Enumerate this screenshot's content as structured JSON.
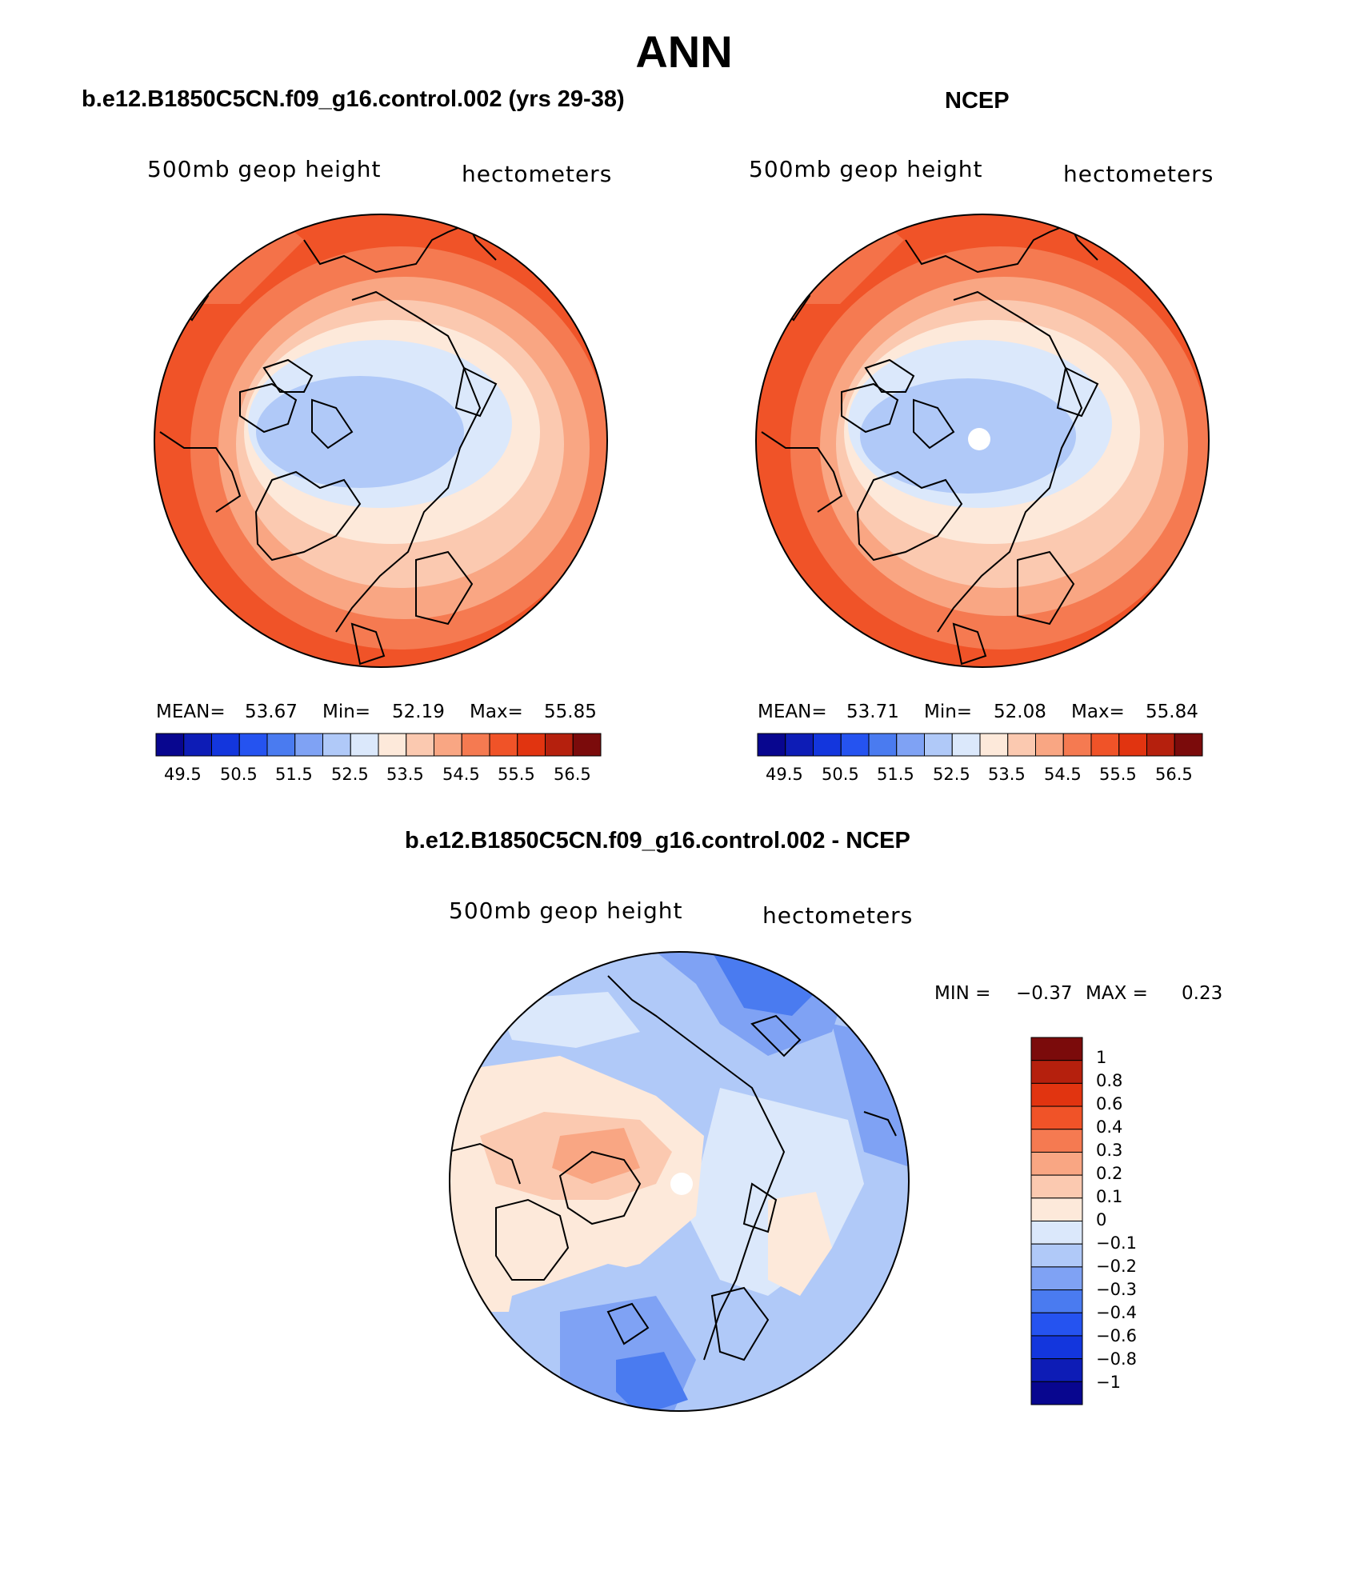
{
  "figure": {
    "title": "ANN"
  },
  "colors": {
    "blue_red_16": [
      "#08068f",
      "#0d1cb6",
      "#1336dd",
      "#2553f0",
      "#4a7bf0",
      "#7fa2f4",
      "#b0c9f8",
      "#dbe8fb",
      "#fde9da",
      "#fbc9b0",
      "#f9a683",
      "#f57a51",
      "#f05328",
      "#e13410",
      "#b5200d",
      "#7b0b0b"
    ]
  },
  "panels": [
    {
      "id": "model",
      "title": "b.e12.B1850C5CN.f09_g16.control.002 (yrs 29-38)",
      "variable": "500mb geop height",
      "units": "hectometers",
      "stats": {
        "mean_label": "MEAN=",
        "mean": "53.67",
        "min_label": "Min=",
        "min": "52.19",
        "max_label": "Max=",
        "max": "55.85"
      },
      "colorbar_ticks": [
        "49.5",
        "50.5",
        "51.5",
        "52.5",
        "53.5",
        "54.5",
        "55.5",
        "56.5"
      ]
    },
    {
      "id": "obs",
      "title": "NCEP",
      "variable": "500mb geop height",
      "units": "hectometers",
      "stats": {
        "mean_label": "MEAN=",
        "mean": "53.71",
        "min_label": "Min=",
        "min": "52.08",
        "max_label": "Max=",
        "max": "55.84"
      },
      "colorbar_ticks": [
        "49.5",
        "50.5",
        "51.5",
        "52.5",
        "53.5",
        "54.5",
        "55.5",
        "56.5"
      ]
    },
    {
      "id": "diff",
      "title": "b.e12.B1850C5CN.f09_g16.control.002 - NCEP",
      "variable": "500mb geop height",
      "units": "hectometers",
      "stats": {
        "min_label": "MIN =",
        "min": "−0.37",
        "max_label": "MAX =",
        "max": "0.23"
      },
      "colorbar_ticks": [
        "1",
        "0.8",
        "0.6",
        "0.4",
        "0.3",
        "0.2",
        "0.1",
        "0",
        "−0.1",
        "−0.2",
        "−0.3",
        "−0.4",
        "−0.6",
        "−0.8",
        "−1"
      ]
    }
  ]
}
